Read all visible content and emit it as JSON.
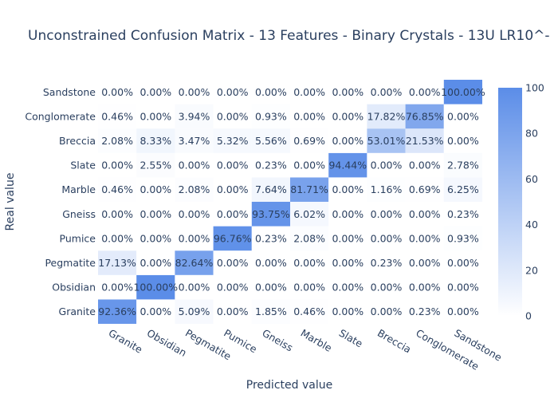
{
  "chart_data": {
    "type": "heatmap",
    "title": "Unconstrained Confusion Matrix - 13 Features - Binary Crystals - 13U LR10^-",
    "xlabel": "Predicted value",
    "ylabel": "Real value",
    "x_categories": [
      "Granite",
      "Obsidian",
      "Pegmatite",
      "Pumice",
      "Gneiss",
      "Marble",
      "Slate",
      "Breccia",
      "Conglomerate",
      "Sandstone"
    ],
    "y_categories": [
      "Granite",
      "Obsidian",
      "Pegmatite",
      "Pumice",
      "Gneiss",
      "Marble",
      "Slate",
      "Breccia",
      "Conglomerate",
      "Sandstone"
    ],
    "values": [
      [
        92.36,
        0.0,
        5.09,
        0.0,
        1.85,
        0.46,
        0.0,
        0.0,
        0.23,
        0.0
      ],
      [
        0.0,
        100.0,
        0.0,
        0.0,
        0.0,
        0.0,
        0.0,
        0.0,
        0.0,
        0.0
      ],
      [
        17.13,
        0.0,
        82.64,
        0.0,
        0.0,
        0.0,
        0.0,
        0.23,
        0.0,
        0.0
      ],
      [
        0.0,
        0.0,
        0.0,
        96.76,
        0.23,
        2.08,
        0.0,
        0.0,
        0.0,
        0.93
      ],
      [
        0.0,
        0.0,
        0.0,
        0.0,
        93.75,
        6.02,
        0.0,
        0.0,
        0.0,
        0.23
      ],
      [
        0.46,
        0.0,
        2.08,
        0.0,
        7.64,
        81.71,
        0.0,
        1.16,
        0.69,
        6.25
      ],
      [
        0.0,
        2.55,
        0.0,
        0.0,
        0.23,
        0.0,
        94.44,
        0.0,
        0.0,
        2.78
      ],
      [
        2.08,
        8.33,
        3.47,
        5.32,
        5.56,
        0.69,
        0.0,
        53.01,
        21.53,
        0.0
      ],
      [
        0.46,
        0.0,
        3.94,
        0.0,
        0.93,
        0.0,
        0.0,
        17.82,
        76.85,
        0.0
      ],
      [
        0.0,
        0.0,
        0.0,
        0.0,
        0.0,
        0.0,
        0.0,
        0.0,
        0.0,
        100.0
      ]
    ],
    "value_suffix": "%",
    "colorscale": [
      "#ffffff",
      "#5b8de8"
    ],
    "zlim": [
      0,
      100
    ],
    "colorbar_ticks": [
      0,
      20,
      40,
      60,
      80,
      100
    ]
  }
}
